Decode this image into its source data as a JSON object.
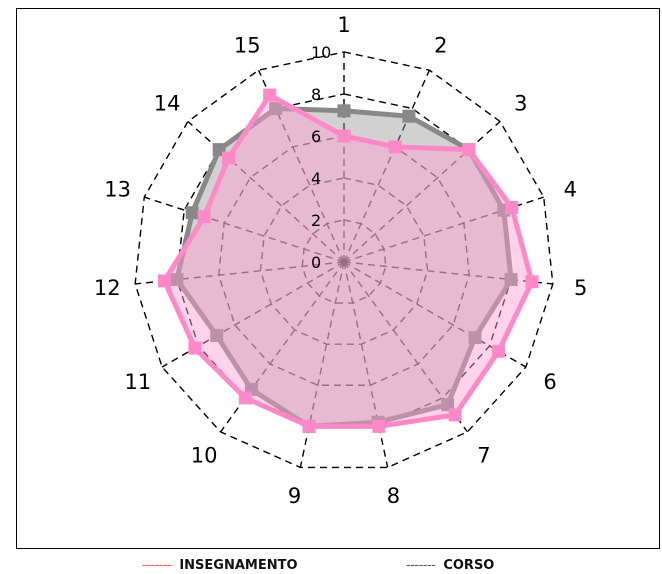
{
  "chart_data": {
    "type": "radar",
    "axes": [
      "1",
      "2",
      "3",
      "4",
      "5",
      "6",
      "7",
      "8",
      "9",
      "10",
      "11",
      "12",
      "13",
      "14",
      "15"
    ],
    "rlim": [
      0,
      10
    ],
    "radial_ticks": [
      "0",
      "2",
      "4",
      "6",
      "8",
      "10"
    ],
    "grid": true,
    "legend_position": "bottom",
    "series": [
      {
        "name": "INSEGNAMENTO",
        "values": [
          6.0,
          6.0,
          8.0,
          8.4,
          9.0,
          8.5,
          9.0,
          8.0,
          8.0,
          8.0,
          8.2,
          8.6,
          7.0,
          7.4,
          8.7
        ],
        "line_color": "#ff88c8",
        "fill_color": "#ff9fd0",
        "legend_dash_color": "#ff5050"
      },
      {
        "name": "CORSO",
        "values": [
          7.2,
          7.6,
          8.0,
          8.0,
          8.0,
          7.2,
          8.4,
          7.8,
          8.0,
          7.5,
          7.0,
          8.0,
          7.6,
          8.0,
          8.0
        ],
        "line_color": "#888888",
        "fill_color": "#999999",
        "legend_dash_color": "#555555"
      }
    ]
  }
}
